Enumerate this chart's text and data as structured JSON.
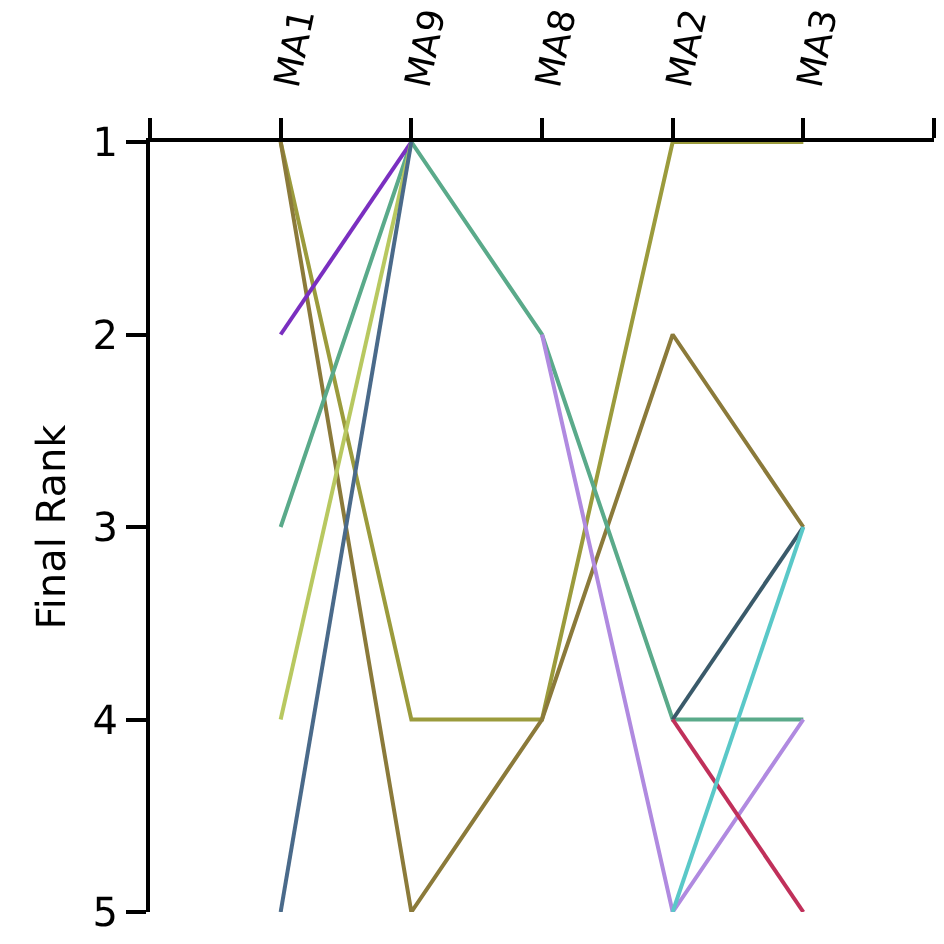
{
  "chart_data": {
    "type": "line",
    "ylabel": "Final Rank",
    "categories": [
      "MA1",
      "MA9",
      "MA8",
      "MA2",
      "MA3"
    ],
    "ylim": [
      5,
      1
    ],
    "yticks": [
      1,
      2,
      3,
      4,
      5
    ],
    "grid": false,
    "marker": "none",
    "line_style": "solid",
    "series": [
      {
        "color": "#9b9b3c",
        "values": [
          1,
          4,
          4,
          1,
          1
        ]
      },
      {
        "color": "#8b7a3a",
        "values": [
          1,
          5,
          4,
          2,
          3
        ]
      },
      {
        "color": "#5aaa8a",
        "values": [
          3,
          1,
          2,
          4,
          4
        ]
      },
      {
        "color": "#7a2fc0",
        "values": [
          2,
          1,
          null,
          null,
          null
        ]
      },
      {
        "color": "#b8c860",
        "values": [
          4,
          1,
          null,
          null,
          null
        ]
      },
      {
        "color": "#4a6a8a",
        "values": [
          5,
          1,
          null,
          null,
          null
        ]
      },
      {
        "color": "#b08ae0",
        "values": [
          null,
          null,
          2,
          5,
          4
        ]
      },
      {
        "color": "#3a5a6a",
        "values": [
          null,
          null,
          null,
          4,
          3
        ]
      },
      {
        "color": "#c0305a",
        "values": [
          null,
          null,
          null,
          4,
          5
        ]
      },
      {
        "color": "#5ac8c8",
        "values": [
          null,
          null,
          null,
          5,
          3
        ]
      }
    ]
  }
}
